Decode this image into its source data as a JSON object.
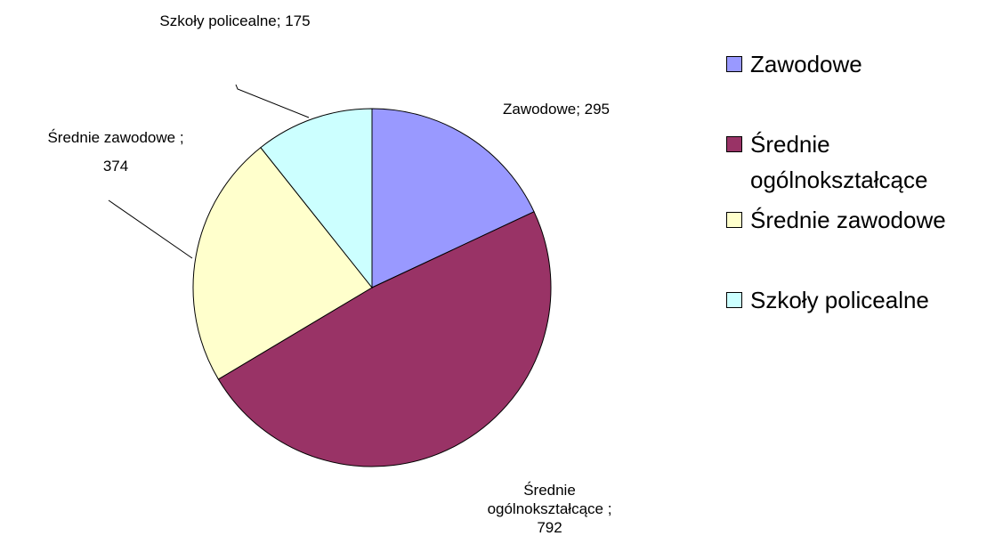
{
  "chart_data": {
    "type": "pie",
    "categories": [
      "Zawodowe",
      "Średnie ogólnokształcące",
      "Średnie zawodowe",
      "Szkoły policealne"
    ],
    "values": [
      295,
      792,
      374,
      175
    ],
    "value_labels": [
      "Zawodowe; 295",
      "Średnie ogólnokształcące ; 792",
      "Średnie zawodowe ; 374",
      "Szkoły policealne; 175"
    ],
    "colors": [
      "#9999ff",
      "#993366",
      "#ffffcc",
      "#ccffff"
    ],
    "legend": "right"
  }
}
